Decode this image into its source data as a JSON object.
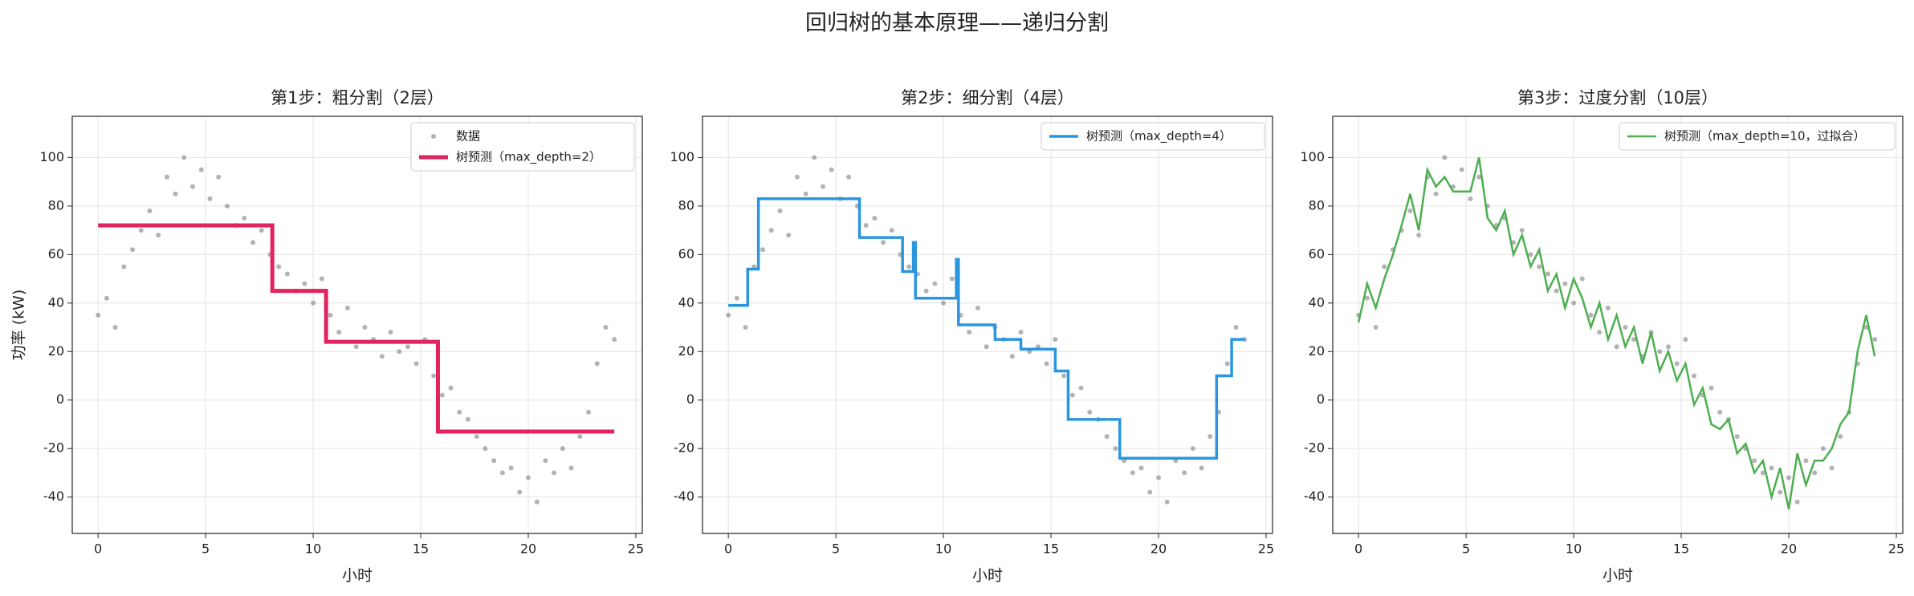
{
  "suptitle": "回归树的基本原理——递归分割",
  "chart_data": [
    {
      "type": "line",
      "title": "第1步：粗分割（2层）",
      "xlabel": "小时",
      "ylabel": "功率 (kW)",
      "xlim": [
        -1.2,
        25.3
      ],
      "ylim": [
        -55,
        117
      ],
      "xticks": [
        0,
        5,
        10,
        15,
        20,
        25
      ],
      "yticks": [
        -40,
        -20,
        0,
        20,
        40,
        60,
        80,
        100
      ],
      "grid": true,
      "legend": "upper right",
      "series": [
        {
          "type": "scatter",
          "name": "数据",
          "color": "#808080",
          "x": [
            0,
            0.4,
            0.8,
            1.2,
            1.6,
            2.0,
            2.4,
            2.8,
            3.2,
            3.6,
            4.0,
            4.4,
            4.8,
            5.2,
            5.6,
            6.0,
            6.4,
            6.8,
            7.2,
            7.6,
            8.0,
            8.4,
            8.8,
            9.2,
            9.6,
            10.0,
            10.4,
            10.8,
            11.2,
            11.6,
            12.0,
            12.4,
            12.8,
            13.2,
            13.6,
            14.0,
            14.4,
            14.8,
            15.2,
            15.6,
            16.0,
            16.4,
            16.8,
            17.2,
            17.6,
            18.0,
            18.4,
            18.8,
            19.2,
            19.6,
            20.0,
            20.4,
            20.8,
            21.2,
            21.6,
            22.0,
            22.4,
            22.8,
            23.2,
            23.6,
            24.0
          ],
          "values": [
            35,
            42,
            30,
            55,
            62,
            70,
            78,
            68,
            92,
            85,
            100,
            88,
            95,
            83,
            92,
            80,
            72,
            75,
            65,
            70,
            60,
            55,
            52,
            45,
            48,
            40,
            50,
            35,
            28,
            38,
            22,
            30,
            25,
            18,
            28,
            20,
            22,
            15,
            25,
            10,
            2,
            5,
            -5,
            -8,
            -15,
            -20,
            -25,
            -30,
            -28,
            -38,
            -32,
            -42,
            -25,
            -30,
            -20,
            -28,
            -15,
            -5,
            15,
            30,
            25
          ]
        },
        {
          "type": "line",
          "name": "树预测（max_depth=2）",
          "color": "#e0245e",
          "width": 5,
          "x": [
            0,
            8.1,
            8.1,
            10.6,
            10.6,
            15.8,
            15.8,
            24
          ],
          "values": [
            72,
            72,
            45,
            45,
            24,
            24,
            -13,
            -13
          ]
        }
      ]
    },
    {
      "type": "line",
      "title": "第2步：细分割（4层）",
      "xlabel": "小时",
      "xlim": [
        -1.2,
        25.3
      ],
      "ylim": [
        -55,
        117
      ],
      "xticks": [
        0,
        5,
        10,
        15,
        20,
        25
      ],
      "yticks": [
        -40,
        -20,
        0,
        20,
        40,
        60,
        80,
        100
      ],
      "grid": true,
      "legend": "upper right",
      "series": [
        {
          "type": "scatter",
          "color": "#808080",
          "x": [
            0,
            0.4,
            0.8,
            1.2,
            1.6,
            2.0,
            2.4,
            2.8,
            3.2,
            3.6,
            4.0,
            4.4,
            4.8,
            5.2,
            5.6,
            6.0,
            6.4,
            6.8,
            7.2,
            7.6,
            8.0,
            8.4,
            8.8,
            9.2,
            9.6,
            10.0,
            10.4,
            10.8,
            11.2,
            11.6,
            12.0,
            12.4,
            12.8,
            13.2,
            13.6,
            14.0,
            14.4,
            14.8,
            15.2,
            15.6,
            16.0,
            16.4,
            16.8,
            17.2,
            17.6,
            18.0,
            18.4,
            18.8,
            19.2,
            19.6,
            20.0,
            20.4,
            20.8,
            21.2,
            21.6,
            22.0,
            22.4,
            22.8,
            23.2,
            23.6,
            24.0
          ],
          "values": [
            35,
            42,
            30,
            55,
            62,
            70,
            78,
            68,
            92,
            85,
            100,
            88,
            95,
            83,
            92,
            80,
            72,
            75,
            65,
            70,
            60,
            55,
            52,
            45,
            48,
            40,
            50,
            35,
            28,
            38,
            22,
            30,
            25,
            18,
            28,
            20,
            22,
            15,
            25,
            10,
            2,
            5,
            -5,
            -8,
            -15,
            -20,
            -25,
            -30,
            -28,
            -38,
            -32,
            -42,
            -25,
            -30,
            -20,
            -28,
            -15,
            -5,
            15,
            30,
            25
          ]
        },
        {
          "type": "line",
          "name": "树预测（max_depth=4）",
          "color": "#2a96e0",
          "width": 3.5,
          "x": [
            0,
            0.9,
            0.9,
            1.4,
            1.4,
            6.1,
            6.1,
            8.1,
            8.1,
            8.6,
            8.6,
            8.7,
            8.7,
            10.6,
            10.6,
            10.7,
            10.7,
            12.4,
            12.4,
            13.6,
            13.6,
            15.2,
            15.2,
            15.8,
            15.8,
            18.2,
            18.2,
            22.7,
            22.7,
            23.4,
            23.4,
            24
          ],
          "values": [
            39,
            39,
            54,
            54,
            83,
            83,
            67,
            67,
            53,
            53,
            65,
            65,
            42,
            42,
            58,
            58,
            31,
            31,
            25,
            25,
            21,
            21,
            12,
            12,
            -8,
            -8,
            -24,
            -24,
            10,
            10,
            25,
            25
          ]
        }
      ]
    },
    {
      "type": "line",
      "title": "第3步：过度分割（10层）",
      "xlabel": "小时",
      "xlim": [
        -1.2,
        25.3
      ],
      "ylim": [
        -55,
        117
      ],
      "xticks": [
        0,
        5,
        10,
        15,
        20,
        25
      ],
      "yticks": [
        -40,
        -20,
        0,
        20,
        40,
        60,
        80,
        100
      ],
      "grid": true,
      "legend": "upper right",
      "series": [
        {
          "type": "scatter",
          "color": "#808080",
          "x": [
            0,
            0.4,
            0.8,
            1.2,
            1.6,
            2.0,
            2.4,
            2.8,
            3.2,
            3.6,
            4.0,
            4.4,
            4.8,
            5.2,
            5.6,
            6.0,
            6.4,
            6.8,
            7.2,
            7.6,
            8.0,
            8.4,
            8.8,
            9.2,
            9.6,
            10.0,
            10.4,
            10.8,
            11.2,
            11.6,
            12.0,
            12.4,
            12.8,
            13.2,
            13.6,
            14.0,
            14.4,
            14.8,
            15.2,
            15.6,
            16.0,
            16.4,
            16.8,
            17.2,
            17.6,
            18.0,
            18.4,
            18.8,
            19.2,
            19.6,
            20.0,
            20.4,
            20.8,
            21.2,
            21.6,
            22.0,
            22.4,
            22.8,
            23.2,
            23.6,
            24.0
          ],
          "values": [
            35,
            42,
            30,
            55,
            62,
            70,
            78,
            68,
            92,
            85,
            100,
            88,
            95,
            83,
            92,
            80,
            72,
            75,
            65,
            70,
            60,
            55,
            52,
            45,
            48,
            40,
            50,
            35,
            28,
            38,
            22,
            30,
            25,
            18,
            28,
            20,
            22,
            15,
            25,
            10,
            2,
            5,
            -5,
            -8,
            -15,
            -20,
            -25,
            -30,
            -28,
            -38,
            -32,
            -42,
            -25,
            -30,
            -20,
            -28,
            -15,
            -5,
            15,
            30,
            25
          ]
        },
        {
          "type": "line",
          "name": "树预测（max_depth=10，过拟合）",
          "color": "#4caf50",
          "width": 2.5,
          "x": [
            0,
            0.4,
            0.8,
            1.2,
            1.6,
            2.0,
            2.4,
            2.8,
            3.2,
            3.6,
            4.0,
            4.4,
            4.8,
            5.2,
            5.6,
            6.0,
            6.4,
            6.8,
            7.2,
            7.6,
            8.0,
            8.4,
            8.8,
            9.2,
            9.6,
            10.0,
            10.4,
            10.8,
            11.2,
            11.6,
            12.0,
            12.4,
            12.8,
            13.2,
            13.6,
            14.0,
            14.4,
            14.8,
            15.2,
            15.6,
            16.0,
            16.4,
            16.8,
            17.2,
            17.6,
            18.0,
            18.4,
            18.8,
            19.2,
            19.6,
            20.0,
            20.4,
            20.8,
            21.2,
            21.6,
            22.0,
            22.4,
            22.8,
            23.2,
            23.6,
            24.0
          ],
          "values": [
            32,
            48,
            38,
            50,
            60,
            72,
            85,
            70,
            95,
            88,
            92,
            86,
            86,
            86,
            100,
            75,
            70,
            78,
            60,
            68,
            55,
            62,
            45,
            52,
            38,
            50,
            42,
            30,
            40,
            25,
            35,
            22,
            30,
            15,
            28,
            12,
            20,
            8,
            15,
            -2,
            5,
            -10,
            -12,
            -8,
            -22,
            -18,
            -30,
            -25,
            -40,
            -28,
            -45,
            -22,
            -35,
            -25,
            -25,
            -20,
            -10,
            -5,
            20,
            35,
            18
          ]
        }
      ]
    }
  ]
}
